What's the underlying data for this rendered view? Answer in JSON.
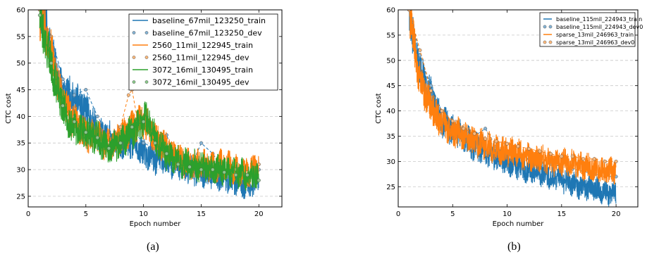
{
  "colors": {
    "blue": "#1f77b4",
    "orange": "#ff7f0e",
    "green": "#2ca02c"
  },
  "chart_data": [
    {
      "type": "line",
      "caption": "(a)",
      "xlabel": "Epoch number",
      "ylabel": "CTC cost",
      "xlim": [
        0,
        22
      ],
      "ylim": [
        23,
        60
      ],
      "xticks": [
        0,
        5,
        10,
        15,
        20
      ],
      "yticks": [
        25,
        30,
        35,
        40,
        45,
        50,
        55,
        60
      ],
      "grid": "horizontal dashed",
      "legend": "top-right",
      "series": [
        {
          "name": "baseline_67mil_123250_train",
          "kind": "train",
          "color": "#1f77b4",
          "x": [
            1,
            1.5,
            2,
            2.5,
            3,
            3.5,
            4,
            5,
            6,
            7,
            8,
            9,
            10,
            11,
            12,
            13,
            14,
            15,
            16,
            17,
            18,
            19,
            19.5,
            20
          ],
          "y": [
            60,
            57,
            52,
            48,
            45,
            44,
            43,
            41,
            37,
            36,
            35,
            35,
            33,
            32,
            31.5,
            31,
            30,
            29.5,
            29,
            28.5,
            28,
            27,
            27.5,
            29
          ]
        },
        {
          "name": "baseline_67mil_123250_dev",
          "kind": "dev",
          "color": "#1f77b4",
          "x": [
            1,
            2,
            3,
            4,
            5,
            6,
            7,
            8,
            9,
            10,
            11,
            12,
            13,
            14,
            15,
            16,
            17,
            18,
            19,
            20
          ],
          "y": [
            60,
            55,
            47,
            44,
            45,
            40,
            36.5,
            36,
            37.5,
            35,
            34,
            36.5,
            31,
            30,
            35,
            33,
            30,
            29,
            28.5,
            30
          ]
        },
        {
          "name": "2560_11mil_122945_train",
          "kind": "train",
          "color": "#ff7f0e",
          "x": [
            1,
            1.5,
            2,
            2.5,
            3,
            3.5,
            4,
            5,
            6,
            7,
            8,
            8.5,
            9,
            9.5,
            10,
            10.5,
            11,
            12,
            13,
            14,
            15,
            16,
            17,
            18,
            19,
            20
          ],
          "y": [
            59,
            56,
            52,
            47,
            43,
            41,
            39,
            36.5,
            36,
            34.5,
            36,
            37,
            38,
            39,
            38.5,
            38,
            36,
            34,
            32,
            31,
            31,
            30.5,
            31,
            30,
            29.5,
            30.5
          ]
        },
        {
          "name": "2560_11mil_122945_dev",
          "kind": "dev",
          "color": "#ff7f0e",
          "x": [
            1,
            2,
            3,
            4,
            5,
            6,
            7,
            8,
            8.7,
            9,
            9.5,
            10,
            11,
            12,
            13,
            14,
            15,
            16,
            17,
            18,
            19,
            20
          ],
          "y": [
            60,
            51,
            43,
            40,
            36,
            36,
            35,
            38,
            44,
            45,
            39,
            39,
            35,
            33.5,
            32,
            31,
            30,
            31,
            30,
            30,
            29.5,
            31
          ]
        },
        {
          "name": "3072_16mil_130495_train",
          "kind": "train",
          "color": "#2ca02c",
          "x": [
            1,
            1.5,
            2,
            2.5,
            3,
            3.5,
            4,
            5,
            6,
            7,
            8,
            9,
            9.5,
            10,
            10.5,
            11,
            12,
            13,
            14,
            15,
            16,
            17,
            18,
            19,
            20
          ],
          "y": [
            58,
            54,
            50,
            45,
            42,
            39,
            38,
            37,
            36,
            34,
            35,
            37,
            38,
            39.5,
            39,
            36,
            33,
            31.5,
            31,
            30.5,
            30,
            30,
            29.5,
            29,
            29
          ]
        },
        {
          "name": "3072_16mil_130495_dev",
          "kind": "dev",
          "color": "#2ca02c",
          "x": [
            1,
            2,
            3,
            4,
            5,
            6,
            7,
            8,
            9,
            10,
            11,
            12,
            13,
            14,
            15,
            16,
            17,
            18,
            19,
            20
          ],
          "y": [
            59,
            50,
            42,
            39,
            37,
            36,
            34,
            35,
            38,
            39,
            35,
            33,
            31,
            30.5,
            30,
            30,
            29.5,
            29,
            29,
            28
          ]
        }
      ]
    },
    {
      "type": "line",
      "caption": "(b)",
      "xlabel": "Epoch number",
      "ylabel": "CTC cost",
      "xlim": [
        0,
        22
      ],
      "ylim": [
        21,
        60
      ],
      "xticks": [
        0,
        5,
        10,
        15,
        20
      ],
      "yticks": [
        25,
        30,
        35,
        40,
        45,
        50,
        55,
        60
      ],
      "grid": "horizontal dashed",
      "legend": "top-right",
      "series": [
        {
          "name": "baseline_115mil_224943_train",
          "kind": "train",
          "color": "#1f77b4",
          "x": [
            1,
            1.3,
            1.6,
            2,
            2.5,
            3,
            3.5,
            4,
            5,
            6,
            7,
            8,
            9,
            10,
            11,
            12,
            13,
            14,
            15,
            16,
            17,
            18,
            19,
            19.6,
            20
          ],
          "y": [
            60,
            56,
            52,
            48,
            45,
            43,
            40,
            38,
            36,
            35,
            33,
            32,
            31,
            30,
            29,
            28.5,
            28,
            27,
            26.5,
            25.5,
            25,
            24.5,
            24,
            23.5,
            24
          ]
        },
        {
          "name": "baseline_115mil_224943_dev0",
          "kind": "dev",
          "color": "#1f77b4",
          "x": [
            1,
            2,
            3,
            4,
            5,
            6,
            7,
            8,
            9,
            10,
            11,
            12,
            13,
            14,
            15,
            16,
            17,
            18,
            19,
            20
          ],
          "y": [
            60,
            51,
            45,
            40,
            37,
            36,
            35,
            36.5,
            33,
            32,
            31,
            30.5,
            30,
            29.5,
            29,
            28.5,
            28,
            27.5,
            27,
            27
          ]
        },
        {
          "name": "sparse_13mil_246963_train",
          "kind": "train",
          "color": "#ff7f0e",
          "x": [
            1,
            1.3,
            1.6,
            2,
            2.5,
            3,
            3.5,
            4,
            5,
            6,
            7,
            8,
            9,
            10,
            11,
            12,
            13,
            14,
            15,
            16,
            17,
            18,
            19,
            19.6,
            20
          ],
          "y": [
            60,
            56,
            51,
            46,
            43,
            41,
            39,
            37.5,
            36,
            35,
            34,
            33,
            32.5,
            32,
            31.5,
            31,
            30.5,
            30,
            30,
            29.5,
            29,
            28.5,
            28,
            28,
            28.5
          ]
        },
        {
          "name": "sparse_13mil_246963_dev0",
          "kind": "dev",
          "color": "#ff7f0e",
          "x": [
            1,
            2,
            3,
            4,
            5,
            6,
            7,
            8,
            9,
            10,
            11,
            12,
            13,
            14,
            15,
            16,
            17,
            18,
            19,
            20
          ],
          "y": [
            60,
            52,
            44,
            40,
            38,
            36.5,
            35.5,
            34.5,
            34,
            33.5,
            33,
            32.5,
            32,
            31.5,
            31,
            31,
            30.5,
            30.5,
            30,
            30
          ]
        }
      ]
    }
  ]
}
